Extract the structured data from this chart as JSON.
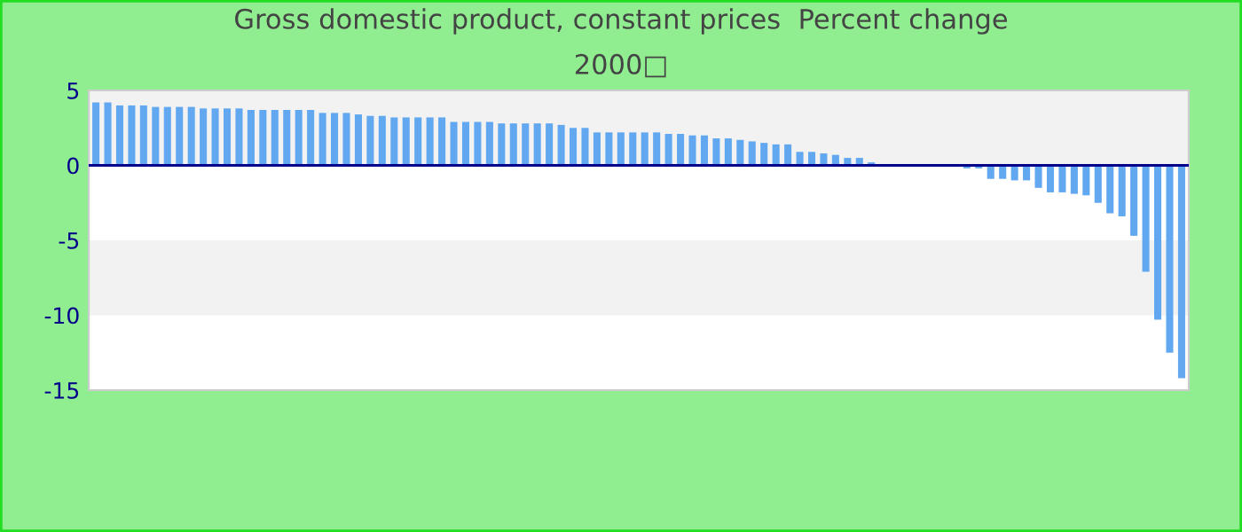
{
  "chart_data": {
    "type": "bar",
    "title": "Gross domestic product, constant prices  Percent change",
    "subtitle": "2000□",
    "categories": [
      null,
      null,
      null,
      null,
      null,
      null,
      null,
      null,
      null,
      null,
      null,
      null,
      null,
      null,
      null,
      null,
      null,
      null,
      null,
      null,
      null,
      null,
      null,
      null,
      null,
      null,
      null,
      null,
      null,
      null,
      null,
      null,
      null,
      null,
      null,
      null,
      null,
      null,
      null,
      null,
      null,
      null,
      null,
      null,
      null,
      null,
      null,
      null,
      null,
      null,
      null,
      null,
      null,
      null,
      null,
      null,
      null,
      null,
      null,
      null,
      null,
      null,
      null,
      null,
      null,
      null,
      null,
      null,
      null,
      null,
      null,
      null,
      null,
      null,
      null,
      null,
      null,
      null,
      null,
      null,
      null,
      null,
      null,
      null,
      null,
      null,
      null,
      null,
      null,
      null,
      null,
      null
    ],
    "values": [
      4.2,
      4.2,
      4.0,
      4.0,
      4.0,
      3.9,
      3.9,
      3.9,
      3.9,
      3.8,
      3.8,
      3.8,
      3.8,
      3.7,
      3.7,
      3.7,
      3.7,
      3.7,
      3.7,
      3.5,
      3.5,
      3.5,
      3.4,
      3.3,
      3.3,
      3.2,
      3.2,
      3.2,
      3.2,
      3.2,
      2.9,
      2.9,
      2.9,
      2.9,
      2.8,
      2.8,
      2.8,
      2.8,
      2.8,
      2.7,
      2.5,
      2.5,
      2.2,
      2.2,
      2.2,
      2.2,
      2.2,
      2.2,
      2.1,
      2.1,
      2.0,
      2.0,
      1.8,
      1.8,
      1.7,
      1.6,
      1.5,
      1.4,
      1.4,
      0.9,
      0.9,
      0.8,
      0.7,
      0.5,
      0.5,
      0.2,
      null,
      null,
      null,
      null,
      null,
      null,
      null,
      -0.2,
      -0.2,
      -0.9,
      -0.9,
      -1.0,
      -1.0,
      -1.5,
      -1.8,
      -1.8,
      -1.9,
      -2.0,
      -2.5,
      -3.2,
      -3.4,
      -4.7,
      -7.1,
      -10.3,
      -12.5,
      -14.2
    ],
    "color": "#62a8f0",
    "ylim": [
      -15,
      5
    ],
    "yticks": [
      -15,
      -10,
      -5,
      0,
      5
    ],
    "bands": [
      {
        "axis": "y",
        "from": 0,
        "to": 5,
        "color": "#f2f2f2"
      },
      {
        "axis": "y",
        "from": -10,
        "to": -5,
        "color": "#f2f2f2"
      }
    ],
    "ref_lines": [
      {
        "axis": "y",
        "value": 0,
        "color": "#00008b"
      }
    ],
    "grid": false,
    "legend": false
  }
}
